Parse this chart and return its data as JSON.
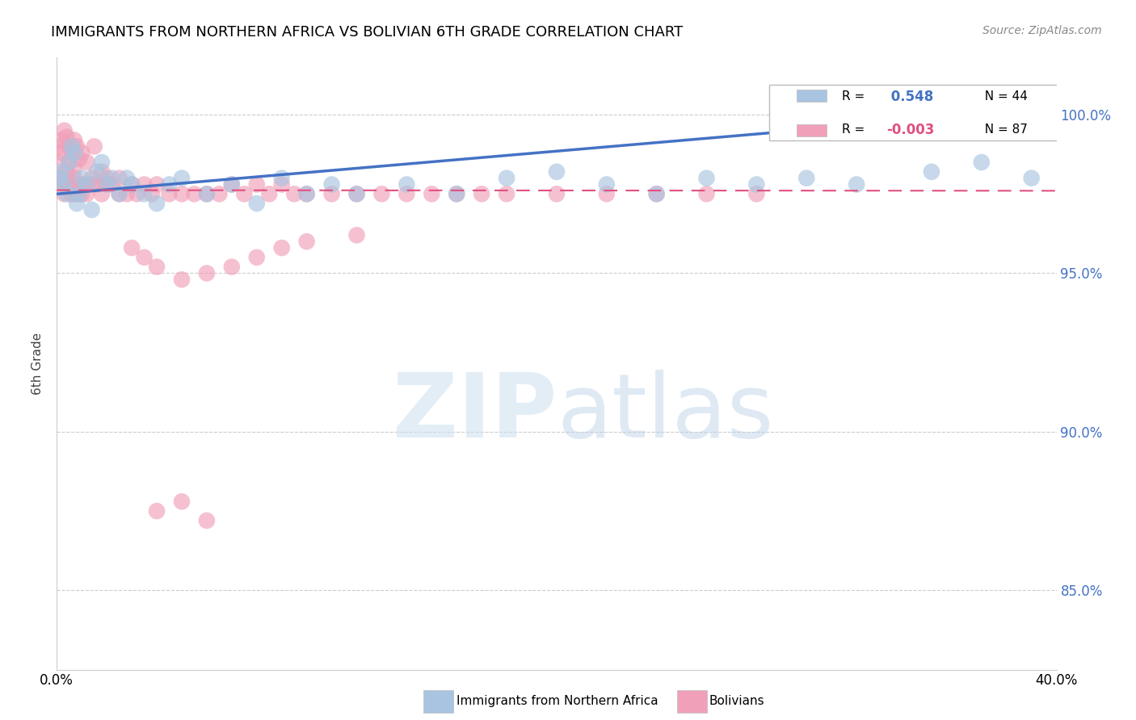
{
  "title": "IMMIGRANTS FROM NORTHERN AFRICA VS BOLIVIAN 6TH GRADE CORRELATION CHART",
  "source": "Source: ZipAtlas.com",
  "ylabel": "6th Grade",
  "y_ticks": [
    100.0,
    95.0,
    90.0,
    85.0
  ],
  "y_tick_labels": [
    "100.0%",
    "95.0%",
    "90.0%",
    "85.0%"
  ],
  "xlim": [
    0.0,
    0.4
  ],
  "ylim": [
    82.5,
    101.8
  ],
  "blue_R": 0.548,
  "blue_N": 44,
  "pink_R": -0.003,
  "pink_N": 87,
  "blue_color": "#a8c4e0",
  "pink_color": "#f0a0b8",
  "blue_line_color": "#4472c4",
  "pink_line_color": "#e05080",
  "grid_color": "#cccccc",
  "blue_scatter_x": [
    0.001,
    0.002,
    0.003,
    0.004,
    0.005,
    0.006,
    0.007,
    0.008,
    0.009,
    0.01,
    0.012,
    0.014,
    0.016,
    0.018,
    0.02,
    0.022,
    0.025,
    0.028,
    0.03,
    0.035,
    0.04,
    0.045,
    0.05,
    0.06,
    0.07,
    0.08,
    0.09,
    0.1,
    0.11,
    0.12,
    0.14,
    0.16,
    0.18,
    0.2,
    0.22,
    0.24,
    0.26,
    0.28,
    0.3,
    0.32,
    0.35,
    0.37,
    0.39,
    0.398
  ],
  "blue_scatter_y": [
    98.0,
    98.2,
    97.8,
    97.5,
    98.5,
    99.0,
    98.8,
    97.2,
    97.5,
    98.0,
    97.8,
    97.0,
    98.2,
    98.5,
    97.8,
    98.0,
    97.5,
    98.0,
    97.8,
    97.5,
    97.2,
    97.8,
    98.0,
    97.5,
    97.8,
    97.2,
    98.0,
    97.5,
    97.8,
    97.5,
    97.8,
    97.5,
    98.0,
    98.2,
    97.8,
    97.5,
    98.0,
    97.8,
    98.0,
    97.8,
    98.2,
    98.5,
    98.0,
    100.5
  ],
  "pink_scatter_x": [
    0.001,
    0.001,
    0.002,
    0.002,
    0.003,
    0.003,
    0.004,
    0.004,
    0.005,
    0.005,
    0.006,
    0.006,
    0.007,
    0.007,
    0.008,
    0.008,
    0.009,
    0.009,
    0.01,
    0.01,
    0.012,
    0.012,
    0.014,
    0.015,
    0.016,
    0.018,
    0.02,
    0.022,
    0.025,
    0.028,
    0.03,
    0.032,
    0.035,
    0.038,
    0.04,
    0.045,
    0.05,
    0.055,
    0.06,
    0.065,
    0.07,
    0.075,
    0.08,
    0.085,
    0.09,
    0.095,
    0.1,
    0.11,
    0.12,
    0.13,
    0.14,
    0.15,
    0.16,
    0.17,
    0.18,
    0.2,
    0.22,
    0.24,
    0.26,
    0.28,
    0.001,
    0.002,
    0.003,
    0.004,
    0.005,
    0.006,
    0.007,
    0.008,
    0.01,
    0.012,
    0.015,
    0.018,
    0.02,
    0.025,
    0.03,
    0.035,
    0.04,
    0.05,
    0.06,
    0.07,
    0.08,
    0.09,
    0.1,
    0.12,
    0.04,
    0.05,
    0.06
  ],
  "pink_scatter_y": [
    99.0,
    98.5,
    99.2,
    98.8,
    99.5,
    98.0,
    99.3,
    97.8,
    99.0,
    98.5,
    98.8,
    97.5,
    99.2,
    98.3,
    99.0,
    97.8,
    98.6,
    97.5,
    98.8,
    97.5,
    98.5,
    97.8,
    98.0,
    99.0,
    97.8,
    98.2,
    98.0,
    97.8,
    98.0,
    97.5,
    97.8,
    97.5,
    97.8,
    97.5,
    97.8,
    97.5,
    97.5,
    97.5,
    97.5,
    97.5,
    97.8,
    97.5,
    97.8,
    97.5,
    97.8,
    97.5,
    97.5,
    97.5,
    97.5,
    97.5,
    97.5,
    97.5,
    97.5,
    97.5,
    97.5,
    97.5,
    97.5,
    97.5,
    97.5,
    97.5,
    98.0,
    97.8,
    97.5,
    98.2,
    97.8,
    97.5,
    98.0,
    97.5,
    97.8,
    97.5,
    97.8,
    97.5,
    97.8,
    97.5,
    95.8,
    95.5,
    95.2,
    94.8,
    95.0,
    95.2,
    95.5,
    95.8,
    96.0,
    96.2,
    87.5,
    87.8,
    87.2
  ],
  "blue_line_x0": 0.0,
  "blue_line_x1": 0.4,
  "blue_line_y0": 97.5,
  "blue_line_y1": 100.2,
  "pink_line_x0": 0.0,
  "pink_line_x1": 0.4,
  "pink_line_y0": 97.62,
  "pink_line_y1": 97.6
}
